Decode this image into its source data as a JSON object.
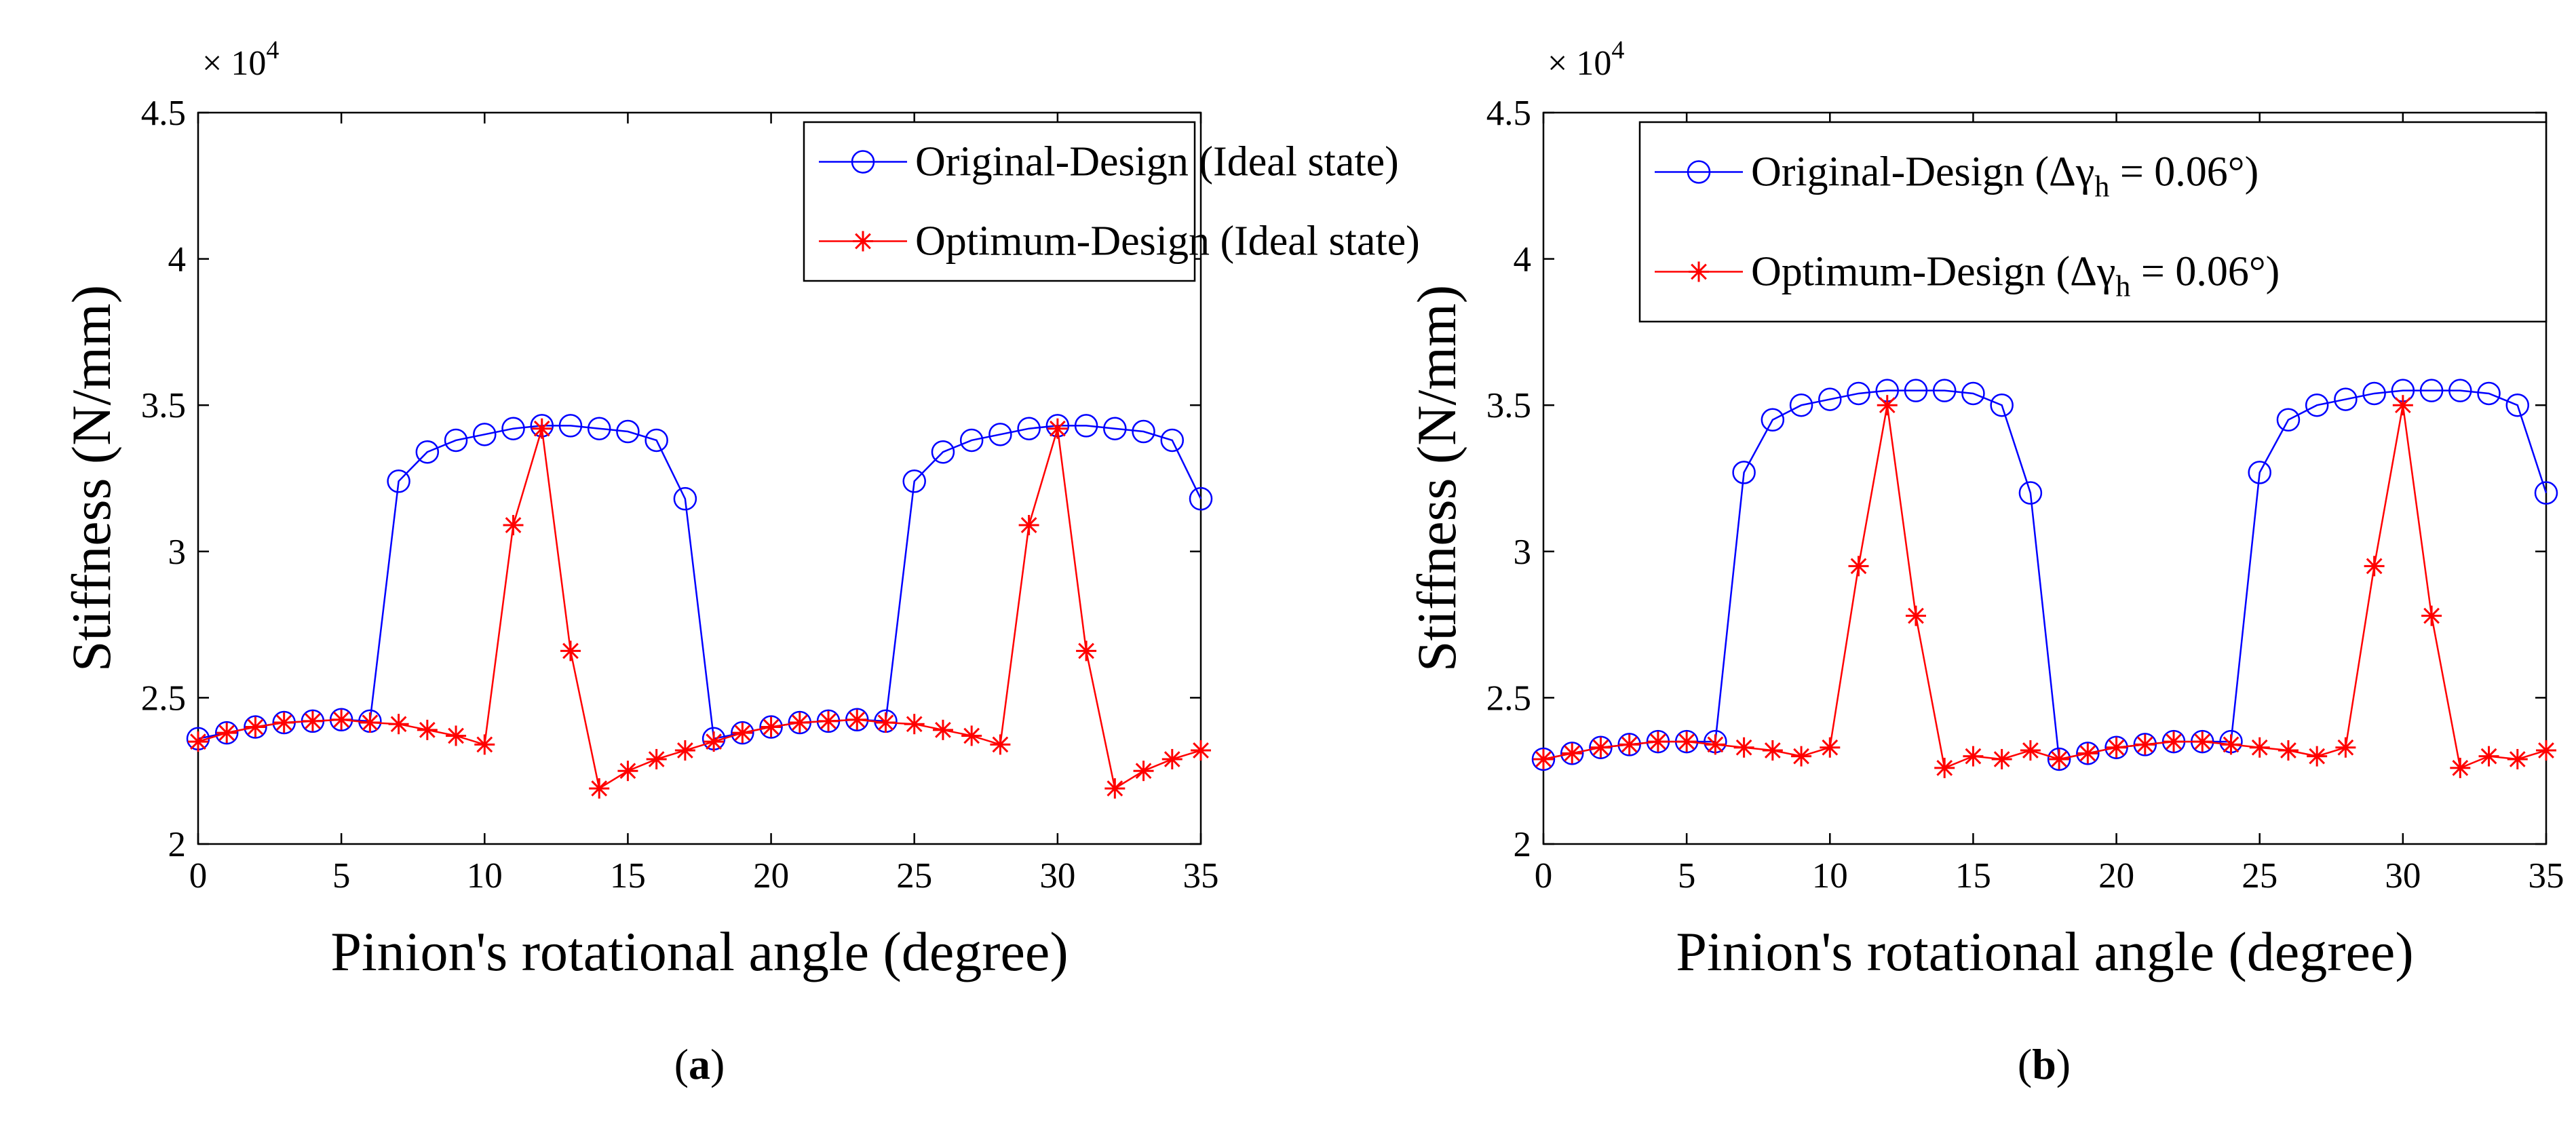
{
  "chart_data": [
    {
      "type": "line",
      "panel_label_open": "(",
      "panel_label": "a",
      "panel_label_close": ")",
      "xlabel": "Pinion's rotational angle (degree)",
      "ylabel": "Stiffness (N/mm)",
      "y_multiplier_base": "× 10",
      "y_multiplier_exp": "4",
      "xlim": [
        0,
        35
      ],
      "ylim": [
        2,
        4.5
      ],
      "xticks": [
        "0",
        "5",
        "10",
        "15",
        "20",
        "25",
        "30",
        "35"
      ],
      "yticks": [
        "2",
        "2.5",
        "3",
        "3.5",
        "4",
        "4.5"
      ],
      "legend_position": "top-right",
      "x": [
        0,
        1,
        2,
        3,
        4,
        5,
        6,
        7,
        8,
        9,
        10,
        11,
        12,
        13,
        14,
        15,
        16,
        17,
        18,
        19,
        20,
        21,
        22,
        23,
        24,
        25,
        26,
        27,
        28,
        29,
        30,
        31,
        32,
        33,
        34,
        35
      ],
      "series": [
        {
          "name": "Original-Design (Ideal state)",
          "color": "#0000ff",
          "marker": "circle",
          "values": [
            2.36,
            2.38,
            2.4,
            2.415,
            2.42,
            2.425,
            2.42,
            3.24,
            3.34,
            3.38,
            3.4,
            3.42,
            3.43,
            3.43,
            3.42,
            3.41,
            3.38,
            3.18,
            2.36,
            2.38,
            2.4,
            2.415,
            2.42,
            2.425,
            2.42,
            3.24,
            3.34,
            3.38,
            3.4,
            3.42,
            3.43,
            3.43,
            3.42,
            3.41,
            3.38,
            3.18
          ]
        },
        {
          "name": "Optimum-Design (Ideal state)",
          "color": "#ff0000",
          "marker": "asterisk",
          "values": [
            2.35,
            2.38,
            2.4,
            2.415,
            2.42,
            2.425,
            2.415,
            2.41,
            2.39,
            2.37,
            2.34,
            3.09,
            3.42,
            2.66,
            2.19,
            2.25,
            2.29,
            2.32,
            2.35,
            2.38,
            2.4,
            2.415,
            2.42,
            2.425,
            2.415,
            2.41,
            2.39,
            2.37,
            2.34,
            3.09,
            3.42,
            2.66,
            2.19,
            2.25,
            2.29,
            2.32
          ]
        }
      ]
    },
    {
      "type": "line",
      "panel_label_open": "(",
      "panel_label": "b",
      "panel_label_close": ")",
      "xlabel": "Pinion's rotational angle (degree)",
      "ylabel": "Stiffness (N/mm)",
      "y_multiplier_base": "× 10",
      "y_multiplier_exp": "4",
      "xlim": [
        0,
        35
      ],
      "ylim": [
        2,
        4.5
      ],
      "xticks": [
        "0",
        "5",
        "10",
        "15",
        "20",
        "25",
        "30",
        "35"
      ],
      "yticks": [
        "2",
        "2.5",
        "3",
        "3.5",
        "4",
        "4.5"
      ],
      "legend_position": "top-right",
      "x": [
        0,
        1,
        2,
        3,
        4,
        5,
        6,
        7,
        8,
        9,
        10,
        11,
        12,
        13,
        14,
        15,
        16,
        17,
        18,
        19,
        20,
        21,
        22,
        23,
        24,
        25,
        26,
        27,
        28,
        29,
        30,
        31,
        32,
        33,
        34,
        35
      ],
      "series": [
        {
          "name": "Original-Design (Δγh = 0.06°)",
          "legend_pre": "Original-Design (Δγ",
          "legend_sub": "h",
          "legend_post": " = 0.06°)",
          "color": "#0000ff",
          "marker": "circle",
          "values": [
            2.29,
            2.31,
            2.33,
            2.34,
            2.35,
            2.35,
            2.35,
            3.27,
            3.45,
            3.5,
            3.52,
            3.54,
            3.55,
            3.55,
            3.55,
            3.54,
            3.5,
            3.2,
            2.29,
            2.31,
            2.33,
            2.34,
            2.35,
            2.35,
            2.35,
            3.27,
            3.45,
            3.5,
            3.52,
            3.54,
            3.55,
            3.55,
            3.55,
            3.54,
            3.5,
            3.2
          ]
        },
        {
          "name": "Optimum-Design (Δγh = 0.06°)",
          "legend_pre": "Optimum-Design (Δγ",
          "legend_sub": "h",
          "legend_post": " = 0.06°)",
          "color": "#ff0000",
          "marker": "asterisk",
          "values": [
            2.29,
            2.31,
            2.33,
            2.34,
            2.35,
            2.35,
            2.34,
            2.33,
            2.32,
            2.3,
            2.33,
            2.95,
            3.5,
            2.78,
            2.26,
            2.3,
            2.29,
            2.32,
            2.29,
            2.31,
            2.33,
            2.34,
            2.35,
            2.35,
            2.34,
            2.33,
            2.32,
            2.3,
            2.33,
            2.95,
            3.5,
            2.78,
            2.26,
            2.3,
            2.29,
            2.32
          ]
        }
      ]
    }
  ]
}
